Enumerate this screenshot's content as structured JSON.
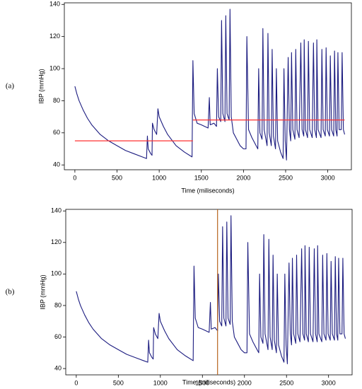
{
  "chart_data": [
    {
      "type": "line",
      "panel_label": "(a)",
      "xlabel": "Time (miliseconds)",
      "ylabel": "IBP (mmHg)",
      "xlim": [
        -125,
        3280
      ],
      "ylim": [
        37,
        141
      ],
      "xticks": [
        0,
        500,
        1000,
        1500,
        2000,
        2500,
        3000
      ],
      "yticks": [
        40,
        60,
        80,
        100,
        120,
        140
      ],
      "x": [
        0,
        25,
        50,
        100,
        150,
        200,
        300,
        400,
        500,
        600,
        700,
        800,
        850,
        860,
        870,
        900,
        915,
        920,
        940,
        970,
        985,
        1000,
        1050,
        1100,
        1200,
        1300,
        1390,
        1400,
        1415,
        1450,
        1500,
        1580,
        1595,
        1605,
        1650,
        1680,
        1690,
        1705,
        1730,
        1740,
        1755,
        1780,
        1790,
        1805,
        1830,
        1840,
        1855,
        1880,
        1920,
        1960,
        2000,
        2030,
        2040,
        2060,
        2100,
        2150,
        2170,
        2180,
        2195,
        2220,
        2230,
        2245,
        2280,
        2290,
        2305,
        2330,
        2340,
        2355,
        2380,
        2390,
        2405,
        2440,
        2470,
        2480,
        2495,
        2510,
        2530,
        2545,
        2560,
        2570,
        2585,
        2610,
        2620,
        2635,
        2660,
        2680,
        2695,
        2715,
        2720,
        2735,
        2760,
        2770,
        2785,
        2815,
        2830,
        2845,
        2865,
        2870,
        2885,
        2920,
        2930,
        2945,
        2970,
        2980,
        2995,
        3020,
        3030,
        3045,
        3070,
        3080,
        3095,
        3110,
        3120,
        3135,
        3160,
        3170,
        3185,
        3200
      ],
      "series": [
        {
          "color": "#1c1c80",
          "values": [
            89,
            84,
            80,
            74,
            69,
            65,
            59,
            55,
            52,
            49,
            47,
            45,
            44,
            58,
            50,
            47,
            46,
            66,
            62,
            59,
            75,
            70,
            64,
            59,
            52,
            48,
            45,
            105,
            72,
            66,
            65,
            63,
            82,
            65,
            66,
            64,
            100,
            70,
            67,
            130,
            72,
            67,
            133,
            72,
            68,
            137,
            70,
            60,
            56,
            52,
            50,
            50,
            120,
            62,
            57,
            52,
            50,
            100,
            60,
            56,
            125,
            62,
            52,
            122,
            60,
            52,
            112,
            58,
            50,
            100,
            55,
            48,
            44,
            100,
            55,
            43,
            107,
            62,
            55,
            110,
            62,
            56,
            112,
            62,
            57,
            116,
            62,
            58,
            118,
            62,
            57,
            117,
            62,
            57,
            116,
            62,
            57,
            118,
            62,
            57,
            112,
            62,
            58,
            113,
            62,
            58,
            108,
            62,
            58,
            111,
            62,
            58,
            110,
            62,
            62,
            110,
            62,
            59
          ]
        }
      ],
      "hlines": [
        {
          "xmin": 0,
          "xmax": 1400,
          "y": 55,
          "color": "#ff3030"
        },
        {
          "xmin": 1400,
          "xmax": 3200,
          "y": 68,
          "color": "#ff3030"
        }
      ]
    },
    {
      "type": "line",
      "panel_label": "(b)",
      "xlabel": "Time (miliseconds)",
      "ylabel": "IBP (mmHg)",
      "xlim": [
        -125,
        3280
      ],
      "ylim": [
        36,
        141
      ],
      "xticks": [
        0,
        500,
        1000,
        1500,
        2000,
        2500,
        3000
      ],
      "yticks": [
        40,
        60,
        80,
        100,
        120,
        140
      ],
      "x": [
        0,
        25,
        50,
        100,
        150,
        200,
        300,
        400,
        500,
        600,
        700,
        800,
        850,
        860,
        870,
        900,
        915,
        920,
        940,
        970,
        985,
        1000,
        1050,
        1100,
        1200,
        1300,
        1390,
        1400,
        1415,
        1450,
        1500,
        1580,
        1595,
        1605,
        1650,
        1680,
        1690,
        1705,
        1730,
        1740,
        1755,
        1780,
        1790,
        1805,
        1830,
        1840,
        1855,
        1880,
        1920,
        1960,
        2000,
        2030,
        2040,
        2060,
        2100,
        2150,
        2170,
        2180,
        2195,
        2220,
        2230,
        2245,
        2280,
        2290,
        2305,
        2330,
        2340,
        2355,
        2380,
        2390,
        2405,
        2440,
        2470,
        2480,
        2495,
        2510,
        2530,
        2545,
        2560,
        2570,
        2585,
        2610,
        2620,
        2635,
        2660,
        2680,
        2695,
        2715,
        2720,
        2735,
        2760,
        2770,
        2785,
        2815,
        2830,
        2845,
        2865,
        2870,
        2885,
        2920,
        2930,
        2945,
        2970,
        2980,
        2995,
        3020,
        3030,
        3045,
        3070,
        3080,
        3095,
        3110,
        3120,
        3135,
        3160,
        3170,
        3185,
        3200
      ],
      "series": [
        {
          "color": "#1c1c80",
          "values": [
            89,
            84,
            80,
            74,
            69,
            65,
            59,
            55,
            52,
            49,
            47,
            45,
            44,
            58,
            50,
            47,
            46,
            66,
            62,
            59,
            75,
            70,
            64,
            59,
            52,
            48,
            45,
            105,
            72,
            66,
            65,
            63,
            82,
            65,
            66,
            64,
            100,
            70,
            67,
            130,
            72,
            67,
            133,
            72,
            68,
            137,
            70,
            60,
            56,
            52,
            50,
            50,
            120,
            62,
            57,
            52,
            50,
            100,
            60,
            56,
            125,
            62,
            52,
            122,
            60,
            52,
            112,
            58,
            50,
            100,
            55,
            48,
            44,
            100,
            55,
            43,
            107,
            62,
            55,
            110,
            62,
            56,
            112,
            62,
            57,
            116,
            62,
            58,
            118,
            62,
            57,
            117,
            62,
            57,
            116,
            62,
            57,
            118,
            62,
            57,
            112,
            62,
            58,
            113,
            62,
            58,
            108,
            62,
            58,
            111,
            62,
            58,
            110,
            62,
            62,
            110,
            62,
            59
          ]
        }
      ],
      "vline": {
        "x": 1680,
        "color": "#b8651e"
      }
    }
  ]
}
